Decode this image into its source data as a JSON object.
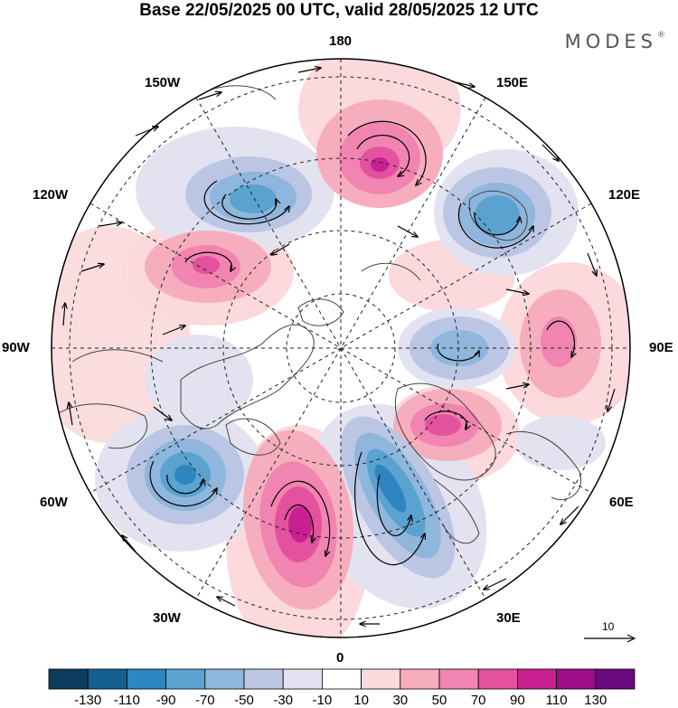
{
  "title": "Base 22/05/2025 00 UTC, valid 28/05/2025 12 UTC",
  "brand": "MODES",
  "brand_mark": "®",
  "longitude_labels": {
    "lon_180": "180",
    "lon_150e": "150E",
    "lon_120e": "120E",
    "lon_90e": "90E",
    "lon_60e": "60E",
    "lon_30e": "30E",
    "lon_0": "0",
    "lon_30w": "30W",
    "lon_60w": "60W",
    "lon_90w": "90W",
    "lon_120w": "120W",
    "lon_150w": "150W"
  },
  "reference_vector": {
    "label": "10"
  },
  "colorbar": {
    "colors": [
      "#0d3d5e",
      "#14608f",
      "#2d86bf",
      "#5aa2cf",
      "#8fb6dc",
      "#bac6e4",
      "#e3e2f0",
      "#ffffff",
      "#fbd9dc",
      "#f6aebe",
      "#f184b0",
      "#e4529f",
      "#c92091",
      "#9c0d86",
      "#6a0a7c"
    ],
    "ticks": [
      "-130",
      "-110",
      "-90",
      "-70",
      "-50",
      "-30",
      "-10",
      "10",
      "30",
      "50",
      "70",
      "90",
      "110",
      "130"
    ]
  },
  "anomaly_colors": {
    "strong_positive": "#cf2f98",
    "positive": "#f184b0",
    "weak_positive": "#fbd9dc",
    "strong_negative": "#2d86bf",
    "negative": "#8fb6dc",
    "weak_negative": "#e3e2f0"
  }
}
